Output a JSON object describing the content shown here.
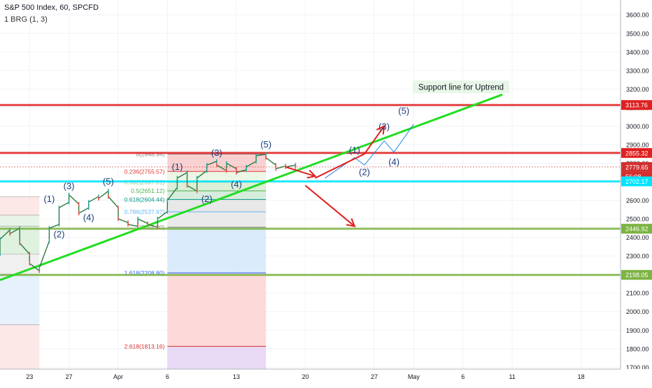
{
  "header": {
    "title": "S&P 500 Index, 60, SPCFD",
    "indicator": "1 BRG (1, 3)"
  },
  "chart_data": {
    "type": "line",
    "y_axis": {
      "range": [
        1690,
        3680
      ],
      "ticks": [
        1700,
        1800,
        1900,
        2000,
        2100,
        2200,
        2300,
        2400,
        2500,
        2600,
        2700,
        2800,
        2900,
        3000,
        3100,
        3200,
        3300,
        3400,
        3500,
        3600
      ],
      "tick_labels": [
        "1700.00",
        "1800.00",
        "1900.00",
        "2000.00",
        "2100.00",
        "2200.00",
        "2300.00",
        "2400.00",
        "2500.00",
        "2600.00",
        "2700.00",
        "2800.00",
        "2900.00",
        "3000.00",
        "3100.00",
        "3200.00",
        "3300.00",
        "3400.00",
        "3500.00",
        "3600.00"
      ],
      "side": "right"
    },
    "x_axis": {
      "range": [
        "2020-03-20",
        "2020-05-22"
      ],
      "ticks": [
        {
          "x": "2020-03-23",
          "label": "23"
        },
        {
          "x": "2020-03-27",
          "label": "27"
        },
        {
          "x": "2020-04-01",
          "label": "Apr"
        },
        {
          "x": "2020-04-06",
          "label": "6"
        },
        {
          "x": "2020-04-13",
          "label": "13"
        },
        {
          "x": "2020-04-20",
          "label": "20"
        },
        {
          "x": "2020-04-27",
          "label": "27"
        },
        {
          "x": "2020-05-01",
          "label": "May"
        },
        {
          "x": "2020-05-06",
          "label": "6"
        },
        {
          "x": "2020-05-11",
          "label": "11"
        },
        {
          "x": "2020-05-18",
          "label": "18"
        }
      ]
    },
    "price_series": {
      "name": "",
      "color": "#26a69a",
      "points": [
        [
          "2020-03-20",
          2310
        ],
        [
          "2020-03-20",
          2390
        ],
        [
          "2020-03-21",
          2440
        ],
        [
          "2020-03-21",
          2420
        ],
        [
          "2020-03-22",
          2450
        ],
        [
          "2020-03-22",
          2370
        ],
        [
          "2020-03-23",
          2310
        ],
        [
          "2020-03-23",
          2260
        ],
        [
          "2020-03-24",
          2220
        ],
        [
          "2020-03-24",
          2237
        ],
        [
          "2020-03-25",
          2380
        ],
        [
          "2020-03-25",
          2450
        ],
        [
          "2020-03-26",
          2470
        ],
        [
          "2020-03-26",
          2560
        ],
        [
          "2020-03-27",
          2590
        ],
        [
          "2020-03-27",
          2630
        ],
        [
          "2020-03-28",
          2580
        ],
        [
          "2020-03-28",
          2530
        ],
        [
          "2020-03-29",
          2560
        ],
        [
          "2020-03-29",
          2590
        ],
        [
          "2020-03-30",
          2620
        ],
        [
          "2020-03-30",
          2610
        ],
        [
          "2020-03-31",
          2650
        ],
        [
          "2020-03-31",
          2620
        ],
        [
          "2020-04-01",
          2560
        ],
        [
          "2020-04-01",
          2500
        ],
        [
          "2020-04-02",
          2480
        ],
        [
          "2020-04-02",
          2470
        ],
        [
          "2020-04-03",
          2460
        ],
        [
          "2020-04-03",
          2500
        ],
        [
          "2020-04-04",
          2475
        ],
        [
          "2020-04-04",
          2470
        ],
        [
          "2020-04-05",
          2455
        ],
        [
          "2020-04-05",
          2500
        ],
        [
          "2020-04-06",
          2540
        ],
        [
          "2020-04-06",
          2600
        ],
        [
          "2020-04-07",
          2670
        ],
        [
          "2020-04-07",
          2720
        ],
        [
          "2020-04-08",
          2750
        ],
        [
          "2020-04-08",
          2680
        ],
        [
          "2020-04-09",
          2650
        ],
        [
          "2020-04-09",
          2720
        ],
        [
          "2020-04-10",
          2760
        ],
        [
          "2020-04-10",
          2790
        ],
        [
          "2020-04-11",
          2810
        ],
        [
          "2020-04-11",
          2790
        ],
        [
          "2020-04-12",
          2760
        ],
        [
          "2020-04-12",
          2800
        ],
        [
          "2020-04-13",
          2770
        ],
        [
          "2020-04-13",
          2750
        ],
        [
          "2020-04-14",
          2765
        ],
        [
          "2020-04-14",
          2780
        ],
        [
          "2020-04-15",
          2810
        ],
        [
          "2020-04-15",
          2840
        ],
        [
          "2020-04-16",
          2849
        ],
        [
          "2020-04-16",
          2830
        ],
        [
          "2020-04-17",
          2790
        ],
        [
          "2020-04-17",
          2770
        ],
        [
          "2020-04-18",
          2785
        ],
        [
          "2020-04-18",
          2780
        ],
        [
          "2020-04-19",
          2790
        ],
        [
          "2020-04-19",
          2779.65
        ]
      ]
    },
    "horizontal_levels": [
      {
        "value": 3113.76,
        "label": "3113.76",
        "color": "#e02020"
      },
      {
        "value": 2855.32,
        "label": "2855.32",
        "color": "#e02020"
      },
      {
        "value": 2779.65,
        "label": "2779.65",
        "color": "#d32f2f"
      },
      {
        "value": 2702.17,
        "label": "2702.17",
        "color": "#00e5ff"
      },
      {
        "value": 2446.92,
        "label": "2446.92",
        "color": "#7cb342"
      },
      {
        "value": 2198.05,
        "label": "2198.05",
        "color": "#7cb342"
      }
    ],
    "countdown_label": "56:08",
    "fibonacci": {
      "start": "2020-04-06",
      "end": "2020-04-16",
      "levels": [
        {
          "value": 2848.94,
          "label": "0(2848.94)",
          "color": "#888888"
        },
        {
          "value": 2755.57,
          "label": "0.236(2755.57)",
          "color": "#e53935"
        },
        {
          "value": 2697.81,
          "label": "0.382(2697.81)",
          "color": "#81c784"
        },
        {
          "value": 2651.12,
          "label": "0.5(2651.12)",
          "color": "#4caf50"
        },
        {
          "value": 2604.44,
          "label": "0.618(2604.44)",
          "color": "#009688"
        },
        {
          "value": 2537.97,
          "label": "0.786(2537.97)",
          "color": "#64b5f6"
        },
        {
          "value": 2455.3,
          "label": "1(2455.30)",
          "color": "#888888"
        },
        {
          "value": 2208.8,
          "label": "1.618(2208.80)",
          "color": "#2962ff"
        },
        {
          "value": 1813.16,
          "label": "2.618(1813.16)",
          "color": "#d32f2f"
        }
      ]
    },
    "left_fibonacci": {
      "start": "2020-03-20",
      "end": "2020-03-24",
      "levels": [
        2620,
        2520,
        2460,
        2310,
        2200,
        1930
      ]
    },
    "support_line": {
      "label": "Support line for Uptrend",
      "color": "#22dd22",
      "points": [
        [
          "2020-03-20",
          2170
        ],
        [
          "2020-05-10",
          3170
        ]
      ]
    },
    "wave_labels": [
      {
        "text": "(1)",
        "x": "2020-03-25",
        "y": 2590
      },
      {
        "text": "(2)",
        "x": "2020-03-26",
        "y": 2400
      },
      {
        "text": "(3)",
        "x": "2020-03-27",
        "y": 2660
      },
      {
        "text": "(4)",
        "x": "2020-03-29",
        "y": 2490
      },
      {
        "text": "(5)",
        "x": "2020-03-31",
        "y": 2685
      },
      {
        "text": "(1)",
        "x": "2020-04-07",
        "y": 2765
      },
      {
        "text": "(2)",
        "x": "2020-04-10",
        "y": 2590
      },
      {
        "text": "(3)",
        "x": "2020-04-11",
        "y": 2840
      },
      {
        "text": "(4)",
        "x": "2020-04-13",
        "y": 2670
      },
      {
        "text": "(5)",
        "x": "2020-04-16",
        "y": 2885
      },
      {
        "text": "(1)",
        "x": "2020-04-25",
        "y": 2855
      },
      {
        "text": "(2)",
        "x": "2020-04-26",
        "y": 2735
      },
      {
        "text": "(3)",
        "x": "2020-04-28",
        "y": 2980
      },
      {
        "text": "(4)",
        "x": "2020-04-29",
        "y": 2790
      },
      {
        "text": "(5)",
        "x": "2020-04-30",
        "y": 3065
      }
    ],
    "projected_wave": {
      "color": "#1e88e5",
      "points": [
        [
          "2020-04-22",
          2720
        ],
        [
          "2020-04-25",
          2830
        ],
        [
          "2020-04-26",
          2790
        ],
        [
          "2020-04-28",
          2920
        ],
        [
          "2020-04-29",
          2860
        ],
        [
          "2020-05-01",
          3010
        ]
      ]
    },
    "arrows": [
      {
        "color": "#e02020",
        "points": [
          [
            "2020-04-18",
            2780
          ],
          [
            "2020-04-21",
            2730
          ]
        ]
      },
      {
        "color": "#e02020",
        "points": [
          [
            "2020-04-21",
            2720
          ],
          [
            "2020-04-26",
            2850
          ],
          [
            "2020-04-28",
            3000
          ]
        ]
      },
      {
        "color": "#e02020",
        "points": [
          [
            "2020-04-20",
            2680
          ],
          [
            "2020-04-25",
            2460
          ]
        ]
      }
    ]
  }
}
